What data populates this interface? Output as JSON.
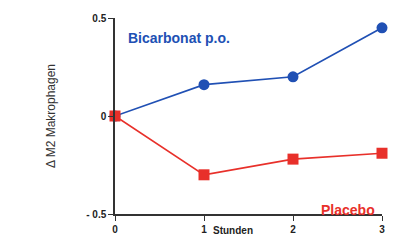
{
  "chart_data": {
    "type": "line",
    "x": [
      0,
      1,
      2,
      3
    ],
    "x_label": "Stunden",
    "y_label": "Δ M2 Makrophagen",
    "series": [
      {
        "name": "Bicarbonat p.o.",
        "color": "#2050b4",
        "marker": "circle",
        "values": [
          0,
          0.16,
          0.2,
          0.45
        ]
      },
      {
        "name": "Placebo",
        "color": "#e8302a",
        "marker": "square",
        "values": [
          0,
          -0.3,
          -0.22,
          -0.19
        ]
      }
    ],
    "xlim": [
      0,
      3
    ],
    "xticks": [
      0,
      1,
      2,
      3
    ],
    "ylim": [
      -0.5,
      0.5
    ],
    "yticks": [
      {
        "value": -0.5,
        "label": "- 0.5"
      },
      0,
      0.5
    ],
    "grid": false
  }
}
